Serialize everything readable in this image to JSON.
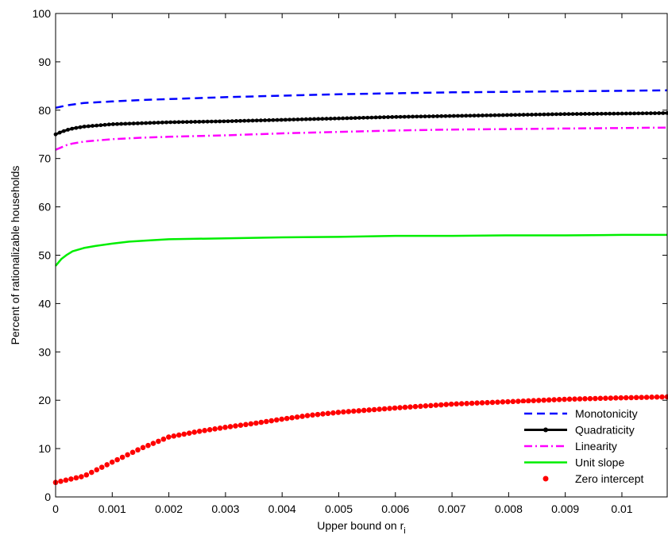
{
  "chart_data": {
    "type": "line",
    "title": "",
    "xlabel": "Upper bound on r",
    "xlabel_subscript": "i",
    "ylabel": "Percent of rationalizable households",
    "xlim": [
      0,
      0.0108
    ],
    "ylim": [
      0,
      100
    ],
    "x_ticks": [
      0,
      0.001,
      0.002,
      0.003,
      0.004,
      0.005,
      0.006,
      0.007,
      0.008,
      0.009,
      0.01
    ],
    "x_tick_labels": [
      "0",
      "0.001",
      "0.002",
      "0.003",
      "0.004",
      "0.005",
      "0.006",
      "0.007",
      "0.008",
      "0.009",
      "0.01"
    ],
    "y_ticks": [
      0,
      10,
      20,
      30,
      40,
      50,
      60,
      70,
      80,
      90,
      100
    ],
    "y_tick_labels": [
      "0",
      "10",
      "20",
      "30",
      "40",
      "50",
      "60",
      "70",
      "80",
      "90",
      "100"
    ],
    "grid": false,
    "legend_position": "bottom-right",
    "series": [
      {
        "name": "Monotonicity",
        "style": "dashed",
        "color": "#0000ff",
        "x": [
          0,
          0.0002,
          0.0005,
          0.001,
          0.0015,
          0.002,
          0.003,
          0.004,
          0.005,
          0.006,
          0.007,
          0.008,
          0.009,
          0.01,
          0.0108
        ],
        "y": [
          80.5,
          81.0,
          81.5,
          81.8,
          82.1,
          82.3,
          82.7,
          83.0,
          83.3,
          83.5,
          83.7,
          83.8,
          83.9,
          84.0,
          84.1
        ]
      },
      {
        "name": "Quadraticity",
        "style": "solid-marker",
        "color": "#000000",
        "x": [
          0,
          0.0001,
          0.0002,
          0.0003,
          0.0005,
          0.0008,
          0.001,
          0.0015,
          0.002,
          0.0025,
          0.003,
          0.004,
          0.005,
          0.006,
          0.007,
          0.008,
          0.009,
          0.01,
          0.0108
        ],
        "y": [
          75.0,
          75.5,
          75.9,
          76.2,
          76.6,
          76.9,
          77.1,
          77.3,
          77.5,
          77.6,
          77.7,
          78.0,
          78.3,
          78.6,
          78.8,
          79.0,
          79.2,
          79.3,
          79.4
        ]
      },
      {
        "name": "Linearity",
        "style": "dashdot",
        "color": "#ff00ff",
        "x": [
          0,
          0.0001,
          0.0002,
          0.0003,
          0.0005,
          0.001,
          0.0015,
          0.002,
          0.003,
          0.004,
          0.005,
          0.006,
          0.007,
          0.008,
          0.009,
          0.01,
          0.0108
        ],
        "y": [
          71.8,
          72.3,
          72.8,
          73.1,
          73.5,
          74.0,
          74.3,
          74.5,
          74.8,
          75.2,
          75.5,
          75.8,
          76.0,
          76.1,
          76.2,
          76.3,
          76.4
        ]
      },
      {
        "name": "Unit slope",
        "style": "solid",
        "color": "#00ee00",
        "x": [
          0,
          0.0001,
          0.0002,
          0.0003,
          0.0005,
          0.0007,
          0.001,
          0.0013,
          0.0017,
          0.002,
          0.003,
          0.004,
          0.005,
          0.006,
          0.007,
          0.008,
          0.009,
          0.01,
          0.0108
        ],
        "y": [
          47.8,
          49.2,
          50.1,
          50.8,
          51.5,
          51.9,
          52.4,
          52.8,
          53.1,
          53.3,
          53.5,
          53.7,
          53.8,
          54.0,
          54.0,
          54.1,
          54.1,
          54.2,
          54.2
        ]
      },
      {
        "name": "Zero intercept",
        "style": "dots",
        "color": "#ff0000",
        "x": [
          0,
          0.0005,
          0.001,
          0.0015,
          0.002,
          0.0025,
          0.003,
          0.0035,
          0.004,
          0.0045,
          0.005,
          0.006,
          0.007,
          0.008,
          0.009,
          0.01,
          0.0108
        ],
        "y": [
          3.0,
          4.3,
          7.2,
          10.0,
          12.4,
          13.5,
          14.4,
          15.2,
          16.1,
          16.9,
          17.5,
          18.4,
          19.2,
          19.7,
          20.2,
          20.5,
          20.7
        ]
      }
    ]
  }
}
